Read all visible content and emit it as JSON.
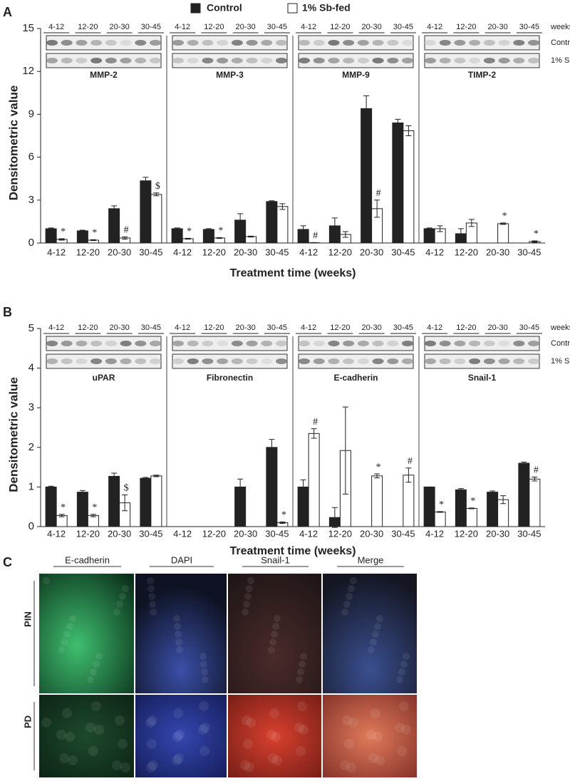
{
  "legend_title": null,
  "chart_data": [
    {
      "type": "bar",
      "panel": "A",
      "ylabel": "Densitometric value",
      "xlabel": "Treatment time (weeks)",
      "weeks_label": "weeks",
      "groups": [
        "MMP-2",
        "MMP-3",
        "MMP-9",
        "TIMP-2"
      ],
      "categories": [
        "4-12",
        "12-20",
        "20-30",
        "30-45",
        "4-12",
        "12-20",
        "20-30",
        "30-45",
        "4-12",
        "12-20",
        "20-30",
        "30-45",
        "4-12",
        "12-20",
        "20-30",
        "30-45"
      ],
      "ylim": [
        0,
        15
      ],
      "yticks": [
        0,
        3,
        6,
        9,
        12,
        15
      ],
      "series": [
        {
          "name": "Control",
          "color": "#222222",
          "values": [
            1.0,
            0.85,
            2.4,
            4.35,
            1.0,
            0.95,
            1.6,
            2.9,
            0.95,
            1.2,
            9.4,
            8.4,
            1.0,
            0.65,
            0,
            0
          ],
          "errors": [
            0.05,
            0.05,
            0.2,
            0.25,
            0.05,
            0.05,
            0.45,
            0.05,
            0.25,
            0.55,
            0.9,
            0.25,
            0.05,
            0.35,
            0,
            0
          ],
          "significance": [
            null,
            null,
            null,
            null,
            null,
            null,
            null,
            null,
            null,
            null,
            null,
            null,
            null,
            null,
            null,
            null
          ]
        },
        {
          "name": "1% Sb-fed",
          "color": "#ffffff",
          "values": [
            0.25,
            0.2,
            0.35,
            3.4,
            0.3,
            0.35,
            0.45,
            2.55,
            0.02,
            0.6,
            2.4,
            7.85,
            1.0,
            1.4,
            1.35,
            0.1
          ],
          "errors": [
            0.05,
            0.03,
            0.08,
            0.1,
            0.03,
            0.03,
            0.03,
            0.2,
            0.01,
            0.2,
            0.6,
            0.35,
            0.2,
            0.25,
            0.05,
            0.05
          ],
          "significance": [
            "*",
            "*",
            "#",
            "$",
            "*",
            "*",
            null,
            null,
            "#",
            null,
            "#",
            null,
            null,
            null,
            "*",
            "*"
          ]
        }
      ]
    },
    {
      "type": "bar",
      "panel": "B",
      "ylabel": "Densitometric value",
      "xlabel": "Treatment time (weeks)",
      "weeks_label": "weeks",
      "groups": [
        "uPAR",
        "Fibronectin",
        "E-cadherin",
        "Snail-1"
      ],
      "categories": [
        "4-12",
        "12-20",
        "20-30",
        "30-45",
        "4-12",
        "12-20",
        "20-30",
        "30-45",
        "4-12",
        "12-20",
        "20-30",
        "30-45",
        "4-12",
        "12-20",
        "20-30",
        "30-45"
      ],
      "ylim": [
        0,
        5
      ],
      "yticks": [
        0,
        1,
        2,
        3,
        4,
        5
      ],
      "series": [
        {
          "name": "Control",
          "color": "#222222",
          "values": [
            1.0,
            0.87,
            1.27,
            1.22,
            0,
            0,
            1.0,
            2.0,
            1.0,
            0.23,
            0,
            0,
            1.0,
            0.93,
            0.87,
            1.6
          ],
          "errors": [
            0.02,
            0.04,
            0.08,
            0.02,
            0,
            0,
            0.2,
            0.2,
            0.18,
            0.25,
            0,
            0,
            0,
            0.03,
            0.03,
            0.03
          ],
          "significance": [
            null,
            null,
            null,
            null,
            null,
            null,
            null,
            null,
            null,
            null,
            null,
            null,
            null,
            null,
            null,
            null
          ]
        },
        {
          "name": "1% Sb-fed",
          "color": "#ffffff",
          "values": [
            0.28,
            0.28,
            0.6,
            1.28,
            0,
            0,
            0,
            0.1,
            2.35,
            1.92,
            1.28,
            1.3,
            0.37,
            0.46,
            0.68,
            1.2
          ],
          "errors": [
            0.03,
            0.03,
            0.2,
            0.02,
            0,
            0,
            0,
            0.02,
            0.12,
            1.1,
            0.05,
            0.18,
            0.01,
            0.01,
            0.1,
            0.05
          ],
          "significance": [
            "*",
            "*",
            "$",
            null,
            null,
            null,
            null,
            "*",
            "#",
            null,
            "*",
            "#",
            "*",
            "*",
            null,
            "#"
          ]
        }
      ]
    }
  ],
  "micrographs": {
    "panel": "C",
    "columns": [
      "E-cadherin",
      "DAPI",
      "Snail-1",
      "Merge"
    ],
    "rows": [
      "PIN",
      "PD"
    ]
  }
}
